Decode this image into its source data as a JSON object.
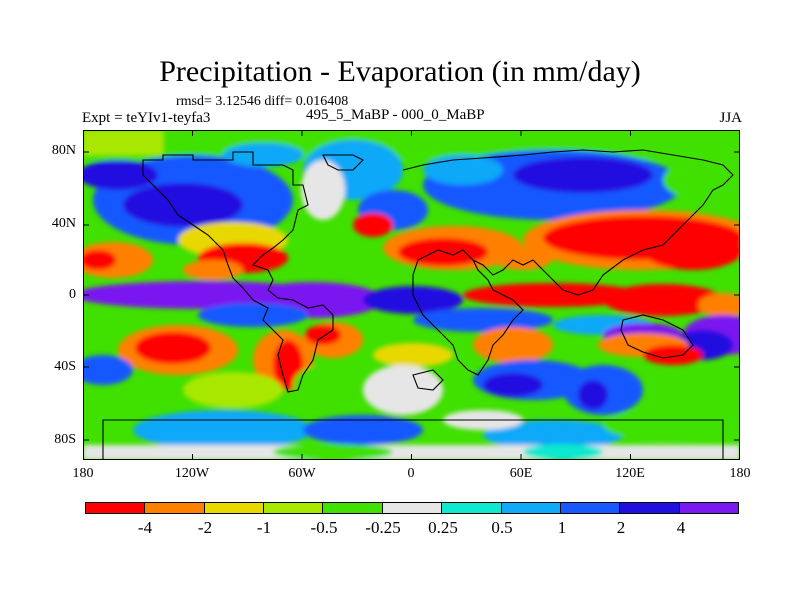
{
  "title": "Precipitation - Evaporation (in mm/day)",
  "stats": "rmsd= 3.12546 diff= 0.016408",
  "expt": "Expt = teYIv1-teyfa3",
  "period": "495_5_MaBP - 000_0_MaBP",
  "season": "JJA",
  "y_ticks": [
    "80N",
    "40N",
    "0",
    "40S",
    "80S"
  ],
  "x_ticks": [
    "180",
    "120W",
    "60W",
    "0",
    "60E",
    "120E",
    "180"
  ],
  "colorbar": {
    "labels": [
      "-4",
      "-2",
      "-1",
      "-0.5",
      "-0.25",
      "0.25",
      "0.5",
      "1",
      "2",
      "4"
    ],
    "colors": [
      "#ff0000",
      "#ff8000",
      "#e8d800",
      "#a8e800",
      "#40e000",
      "#e6e6e6",
      "#10e8d0",
      "#10a8f8",
      "#1858ff",
      "#2010e0",
      "#7a18f0"
    ]
  }
}
